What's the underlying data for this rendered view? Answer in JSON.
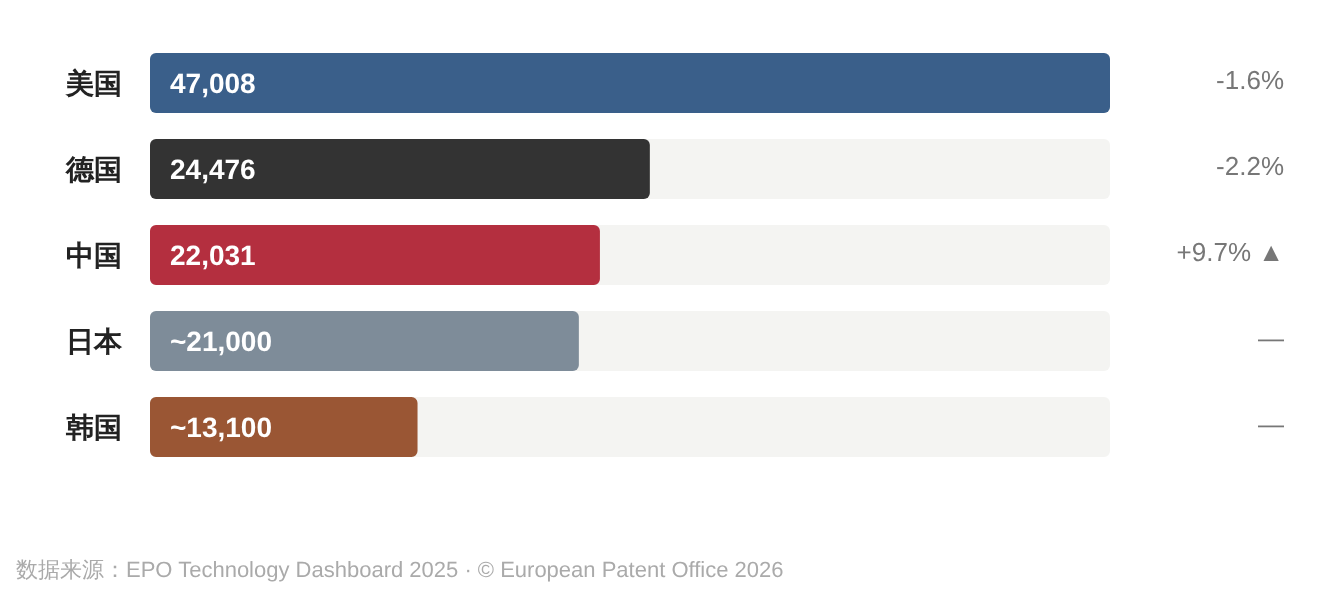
{
  "chart_data": {
    "type": "bar",
    "orientation": "horizontal",
    "categories": [
      "美国",
      "德国",
      "中国",
      "日本",
      "韩国"
    ],
    "values": [
      47008,
      24476,
      22031,
      21000,
      13100
    ],
    "colors": [
      "#3a5f8a",
      "#333333",
      "#b42f3f",
      "#7e8c99",
      "#9a5634"
    ],
    "value_labels": [
      "47,008",
      "24,476",
      "22,031",
      "~21,000",
      "~13,100"
    ],
    "annotations": [
      "-1.6%",
      "-2.2%",
      "+9.7% ▲",
      "—",
      "—",
      "数据来源：EPO Technology Dashboard 2025 · © European Patent Office 2026"
    ]
  }
}
